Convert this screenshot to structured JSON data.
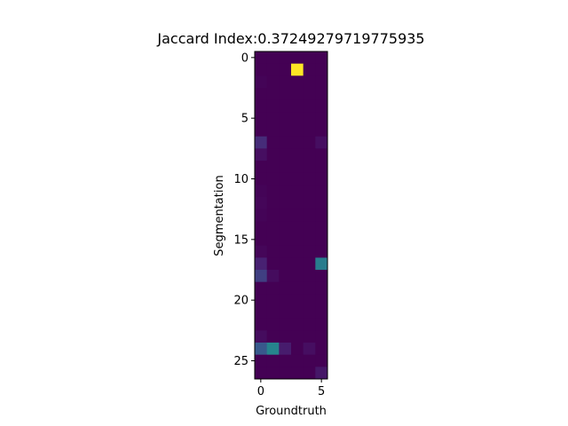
{
  "chart_data": {
    "type": "heatmap",
    "title": "Jaccard Index:0.37249279719775935",
    "xlabel": "Groundtruth",
    "ylabel": "Segmentation",
    "n_rows": 27,
    "n_cols": 6,
    "x_ticks": [
      0,
      5
    ],
    "y_ticks": [
      0,
      5,
      10,
      15,
      20,
      25
    ],
    "colormap": "viridis",
    "vmin": 0.0,
    "vmax": 1.0,
    "values": [
      [
        0.0,
        0.0,
        0.0,
        0.0,
        0.0,
        0.0
      ],
      [
        0.0,
        0.0,
        0.0,
        1.0,
        0.0,
        0.0
      ],
      [
        0.01,
        0.0,
        0.0,
        0.0,
        0.0,
        0.0
      ],
      [
        0.0,
        0.0,
        0.0,
        0.0,
        0.0,
        0.0
      ],
      [
        0.0,
        0.0,
        0.0,
        0.0,
        0.0,
        0.0
      ],
      [
        0.0,
        0.0,
        0.0,
        0.0,
        0.0,
        0.0
      ],
      [
        0.0,
        0.0,
        0.0,
        0.0,
        0.0,
        0.0
      ],
      [
        0.15,
        0.0,
        0.0,
        0.0,
        0.0,
        0.05
      ],
      [
        0.05,
        0.0,
        0.0,
        0.0,
        0.0,
        0.0
      ],
      [
        0.0,
        0.0,
        0.0,
        0.0,
        0.0,
        0.0
      ],
      [
        0.0,
        0.0,
        0.0,
        0.0,
        0.0,
        0.0
      ],
      [
        0.01,
        0.0,
        0.0,
        0.0,
        0.0,
        0.0
      ],
      [
        0.02,
        0.0,
        0.0,
        0.0,
        0.0,
        0.0
      ],
      [
        0.01,
        0.0,
        0.0,
        0.0,
        0.0,
        0.0
      ],
      [
        0.0,
        0.0,
        0.0,
        0.0,
        0.0,
        0.0
      ],
      [
        0.0,
        0.0,
        0.0,
        0.0,
        0.0,
        0.0
      ],
      [
        0.02,
        0.0,
        0.0,
        0.0,
        0.0,
        0.0
      ],
      [
        0.12,
        0.0,
        0.0,
        0.0,
        0.0,
        0.42
      ],
      [
        0.2,
        0.04,
        0.0,
        0.0,
        0.0,
        0.0
      ],
      [
        0.0,
        0.0,
        0.0,
        0.0,
        0.0,
        0.0
      ],
      [
        0.0,
        0.0,
        0.0,
        0.0,
        0.0,
        0.0
      ],
      [
        0.0,
        0.0,
        0.0,
        0.0,
        0.0,
        0.0
      ],
      [
        0.0,
        0.0,
        0.0,
        0.0,
        0.0,
        0.0
      ],
      [
        0.04,
        0.0,
        0.0,
        0.0,
        0.0,
        0.0
      ],
      [
        0.28,
        0.45,
        0.1,
        0.0,
        0.05,
        0.0
      ],
      [
        0.0,
        0.0,
        0.0,
        0.0,
        0.0,
        0.0
      ],
      [
        0.0,
        0.0,
        0.0,
        0.0,
        0.0,
        0.08
      ]
    ]
  }
}
